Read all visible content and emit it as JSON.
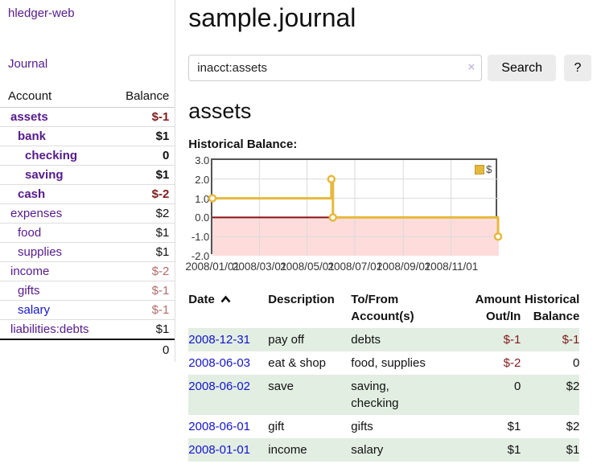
{
  "app": {
    "brand": "hledger-web"
  },
  "sidebar": {
    "journal_link": "Journal",
    "account_header": "Account",
    "balance_header": "Balance",
    "accounts": [
      {
        "name": "assets",
        "balance": "$-1"
      },
      {
        "name": "bank",
        "balance": "$1"
      },
      {
        "name": "checking",
        "balance": "0"
      },
      {
        "name": "saving",
        "balance": "$1"
      },
      {
        "name": "cash",
        "balance": "$-2"
      },
      {
        "name": "expenses",
        "balance": "$2"
      },
      {
        "name": "food",
        "balance": "$1"
      },
      {
        "name": "supplies",
        "balance": "$1"
      },
      {
        "name": "income",
        "balance": "$-2"
      },
      {
        "name": "gifts",
        "balance": "$-1"
      },
      {
        "name": "salary",
        "balance": "$-1"
      },
      {
        "name": "liabilities:debts",
        "balance": "$1"
      }
    ],
    "total": "0"
  },
  "main": {
    "title": "sample.journal",
    "search": {
      "value": "inacct:assets",
      "clear_label": "×",
      "button_label": "Search",
      "help_label": "?"
    },
    "account_heading": "assets",
    "chart_heading": "Historical Balance:"
  },
  "chart_data": {
    "type": "line",
    "title": "Historical Balance",
    "step": true,
    "x_range": [
      "2008/01/01",
      "2009/01/01"
    ],
    "ylim": [
      -2,
      3
    ],
    "yticks": [
      "3.0",
      "2.0",
      "1.0",
      "0.0",
      "-1.0",
      "-2.0"
    ],
    "xticks": [
      "2008/01/01",
      "2008/03/01",
      "2008/05/01",
      "2008/07/01",
      "2008/09/01",
      "2008/11/01"
    ],
    "series": [
      {
        "name": "$",
        "color": "#e6b93c",
        "points": [
          [
            "2008/01/01",
            1
          ],
          [
            "2008/06/01",
            2
          ],
          [
            "2008/06/03",
            0
          ],
          [
            "2008/12/31",
            -1
          ]
        ]
      }
    ],
    "legend": {
      "label": "$",
      "position": "top-right"
    },
    "grid": true,
    "grid_color": "#d9d9d9",
    "zero_line_color": "#8b1212",
    "negative_region_fill": "#ffdcdc",
    "border_color": "#545454"
  },
  "register": {
    "headers": {
      "date": "Date",
      "description": "Description",
      "accounts": "To/From\nAccount(s)",
      "amount": "Amount\nOut/In",
      "balance": "Historical\nBalance"
    },
    "rows": [
      {
        "date": "2008-12-31",
        "description": "pay off",
        "accounts": "debts",
        "amount": "$-1",
        "balance": "$-1"
      },
      {
        "date": "2008-06-03",
        "description": "eat & shop",
        "accounts": "food, supplies",
        "amount": "$-2",
        "balance": "0"
      },
      {
        "date": "2008-06-02",
        "description": "save",
        "accounts": "saving,\nchecking",
        "amount": "0",
        "balance": "$2"
      },
      {
        "date": "2008-06-01",
        "description": "gift",
        "accounts": "gifts",
        "amount": "$1",
        "balance": "$2"
      },
      {
        "date": "2008-01-01",
        "description": "income",
        "accounts": "salary",
        "amount": "$1",
        "balance": "$1"
      }
    ]
  },
  "colors": {
    "link_purple": "#551a8b",
    "link_blue": "#1414cc",
    "negative": "#7e1c1c",
    "negative_faded": "#b36b6b",
    "row_stripe": "#e2eee2",
    "accent_gold": "#e6b93c"
  }
}
